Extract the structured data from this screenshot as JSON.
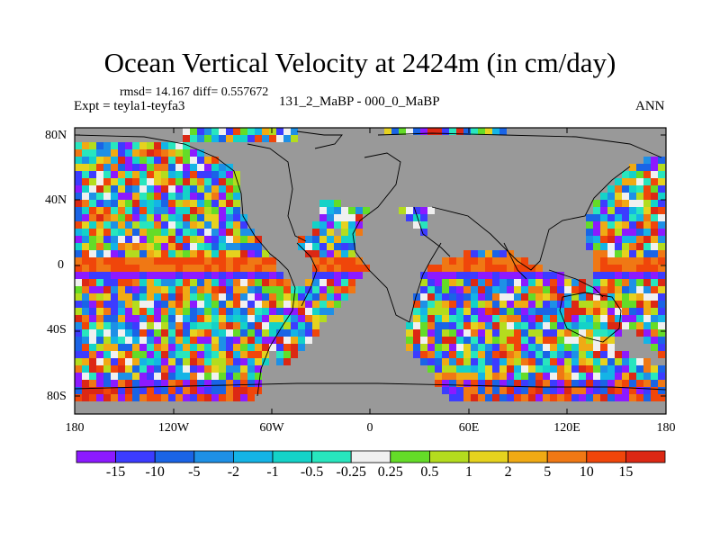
{
  "title": "Ocean Vertical Velocity at 2424m (in cm/day)",
  "stats": "rmsd= 14.167 diff= 0.557672",
  "experiment": "Expt = teyla1-teyfa3",
  "case": "131_2_MaBP - 000_0_MaBP",
  "season": "ANN",
  "lat_labels": [
    "80N",
    "40N",
    "0",
    "40S",
    "80S"
  ],
  "lon_labels": [
    "180",
    "120W",
    "60W",
    "0",
    "60E",
    "120E",
    "180"
  ],
  "colorbar": {
    "labels": [
      "-15",
      "-10",
      "-5",
      "-2",
      "-1",
      "-0.5",
      "-0.25",
      "0.25",
      "0.5",
      "1",
      "2",
      "5",
      "10",
      "15"
    ],
    "colors": [
      "#8c1aff",
      "#3c3cff",
      "#1a64e6",
      "#1e90e6",
      "#14b4e6",
      "#14d2c8",
      "#28e6be",
      "#f0f0f0",
      "#64dc28",
      "#b4dc1e",
      "#e6d21e",
      "#f0aa14",
      "#f07814",
      "#f0460a",
      "#dc2814"
    ]
  },
  "land_color": "#999999"
}
